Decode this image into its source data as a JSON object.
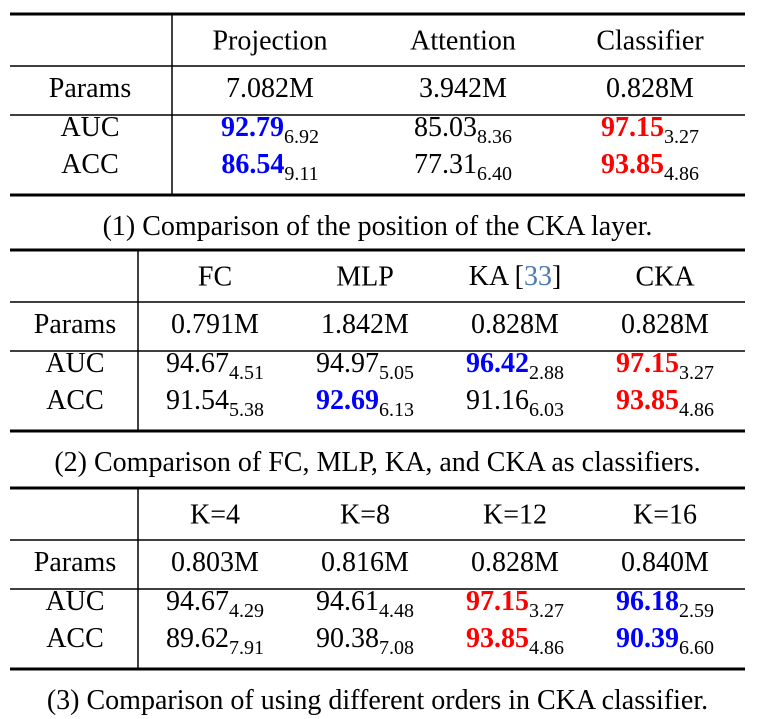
{
  "tables": [
    {
      "columns": [
        "Projection",
        "Attention",
        "Classifier"
      ],
      "rows": [
        {
          "label": "Params",
          "cells": [
            {
              "value": "7.082M"
            },
            {
              "value": "3.942M"
            },
            {
              "value": "0.828M"
            }
          ]
        },
        {
          "label": "AUC",
          "cells": [
            {
              "value": "92.79",
              "sub": "6.92",
              "color": "#0000ff"
            },
            {
              "value": "85.03",
              "sub": "8.36"
            },
            {
              "value": "97.15",
              "sub": "3.27",
              "color": "#ff0000"
            }
          ]
        },
        {
          "label": "ACC",
          "cells": [
            {
              "value": "86.54",
              "sub": "9.11",
              "color": "#0000ff"
            },
            {
              "value": "77.31",
              "sub": "6.40"
            },
            {
              "value": "93.85",
              "sub": "4.86",
              "color": "#ff0000"
            }
          ]
        }
      ],
      "caption": "(1) Comparison of the position of the CKA layer."
    },
    {
      "columns": [
        "FC",
        "MLP",
        {
          "label": "KA [",
          "ref": "33",
          "after": "]",
          "ref_color": "#4a7ab5"
        },
        "CKA"
      ],
      "rows": [
        {
          "label": "Params",
          "cells": [
            {
              "value": "0.791M"
            },
            {
              "value": "1.842M"
            },
            {
              "value": "0.828M"
            },
            {
              "value": "0.828M"
            }
          ]
        },
        {
          "label": "AUC",
          "cells": [
            {
              "value": "94.67",
              "sub": "4.51"
            },
            {
              "value": "94.97",
              "sub": "5.05"
            },
            {
              "value": "96.42",
              "sub": "2.88",
              "color": "#0000ff"
            },
            {
              "value": "97.15",
              "sub": "3.27",
              "color": "#ff0000"
            }
          ]
        },
        {
          "label": "ACC",
          "cells": [
            {
              "value": "91.54",
              "sub": "5.38"
            },
            {
              "value": "92.69",
              "sub": "6.13",
              "color": "#0000ff"
            },
            {
              "value": "91.16",
              "sub": "6.03"
            },
            {
              "value": "93.85",
              "sub": "4.86",
              "color": "#ff0000"
            }
          ]
        }
      ],
      "caption": "(2) Comparison of FC, MLP, KA, and CKA as classifiers."
    },
    {
      "columns": [
        "K=4",
        "K=8",
        "K=12",
        "K=16"
      ],
      "rows": [
        {
          "label": "Params",
          "cells": [
            {
              "value": "0.803M"
            },
            {
              "value": "0.816M"
            },
            {
              "value": "0.828M"
            },
            {
              "value": "0.840M"
            }
          ]
        },
        {
          "label": "AUC",
          "cells": [
            {
              "value": "94.67",
              "sub": "4.29"
            },
            {
              "value": "94.61",
              "sub": "4.48"
            },
            {
              "value": "97.15",
              "sub": "3.27",
              "color": "#ff0000"
            },
            {
              "value": "96.18",
              "sub": "2.59",
              "color": "#0000ff"
            }
          ]
        },
        {
          "label": "ACC",
          "cells": [
            {
              "value": "89.62",
              "sub": "7.91"
            },
            {
              "value": "90.38",
              "sub": "7.08"
            },
            {
              "value": "93.85",
              "sub": "4.86",
              "color": "#ff0000"
            },
            {
              "value": "90.39",
              "sub": "6.60",
              "color": "#0000ff"
            }
          ]
        }
      ],
      "caption": "(3) Comparison of using different orders in CKA classifier."
    }
  ]
}
